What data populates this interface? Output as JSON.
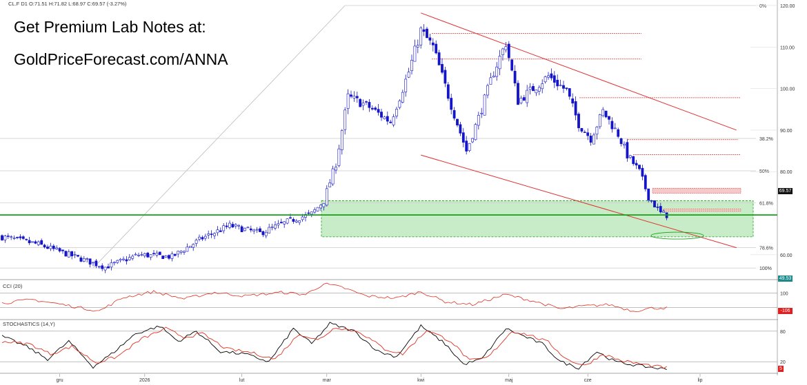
{
  "header": {
    "symbol": "CL.F",
    "timeframe": "D1",
    "ohlc_text": "O:71.51  H:71.82  L:68.97  C:69.57  (-3.27%)"
  },
  "promo": {
    "line1": "Get Premium Lab Notes at:",
    "line2": "GoldPriceForecast.com/ANNA"
  },
  "chart_data": [
    {
      "type": "candlestick",
      "title": "",
      "x_tick_labels": [
        "gru",
        "2026",
        "lut",
        "mar",
        "kwi",
        "maj",
        "cze",
        "lip"
      ],
      "y_tick_labels": [
        "120.00",
        "110.00",
        "100.00",
        "90.00",
        "80.00",
        "60.00"
      ],
      "ylim": [
        55,
        120
      ],
      "last_price": "69.57",
      "last_price_value": 69.57,
      "horizontal_support": 69.57,
      "fibonacci": {
        "start_value": 56.8,
        "end_value": 120.0,
        "levels": [
          {
            "label": "0%",
            "value": 120.0
          },
          {
            "label": "38.2%",
            "value": 88.0
          },
          {
            "label": "50%",
            "value": 80.2
          },
          {
            "label": "61.8%",
            "value": 72.5
          },
          {
            "label": "78.6%",
            "value": 61.7
          },
          {
            "label": "100%",
            "value": 56.8
          }
        ]
      },
      "green_zone": {
        "low": 64.3,
        "high": 73.0
      },
      "resistance_lines": [
        113.3,
        107.1,
        97.8,
        87.7,
        84.1
      ],
      "shaded_resistance": [
        {
          "low": 74.8,
          "high": 76.0
        },
        {
          "low": 70.5,
          "high": 71.0
        }
      ],
      "channel_upper": {
        "from": {
          "bar": 138,
          "value": 118.2
        },
        "to": {
          "bar": 242,
          "value": 90.0
        }
      },
      "channel_lower": {
        "from": {
          "bar": 138,
          "value": 84.0
        },
        "to": {
          "bar": 242,
          "value": 61.7
        }
      },
      "anchor_points": [
        {
          "bar": 0,
          "value": 64.3
        },
        {
          "bar": 12,
          "value": 62.5
        },
        {
          "bar": 30,
          "value": 58.0
        },
        {
          "bar": 34,
          "value": 57.0
        },
        {
          "bar": 45,
          "value": 60.0
        },
        {
          "bar": 56,
          "value": 59.5
        },
        {
          "bar": 66,
          "value": 64.0
        },
        {
          "bar": 75,
          "value": 67.0
        },
        {
          "bar": 85,
          "value": 65.2
        },
        {
          "bar": 96,
          "value": 68.5
        },
        {
          "bar": 102,
          "value": 69.8
        },
        {
          "bar": 106,
          "value": 73.0
        },
        {
          "bar": 110,
          "value": 82.0
        },
        {
          "bar": 114,
          "value": 98.0
        },
        {
          "bar": 120,
          "value": 96.0
        },
        {
          "bar": 128,
          "value": 92.0
        },
        {
          "bar": 134,
          "value": 104.0
        },
        {
          "bar": 138,
          "value": 114.0
        },
        {
          "bar": 142,
          "value": 110.0
        },
        {
          "bar": 148,
          "value": 96.0
        },
        {
          "bar": 153,
          "value": 85.0
        },
        {
          "bar": 157,
          "value": 93.0
        },
        {
          "bar": 162,
          "value": 104.0
        },
        {
          "bar": 166,
          "value": 111.0
        },
        {
          "bar": 170,
          "value": 97.0
        },
        {
          "bar": 175,
          "value": 100.0
        },
        {
          "bar": 180,
          "value": 103.0
        },
        {
          "bar": 186,
          "value": 99.5
        },
        {
          "bar": 190,
          "value": 91.5
        },
        {
          "bar": 194,
          "value": 88.0
        },
        {
          "bar": 198,
          "value": 94.5
        },
        {
          "bar": 203,
          "value": 89.0
        },
        {
          "bar": 206,
          "value": 84.0
        },
        {
          "bar": 210,
          "value": 80.0
        },
        {
          "bar": 213,
          "value": 74.0
        },
        {
          "bar": 217,
          "value": 70.0
        },
        {
          "bar": 219,
          "value": 69.57
        }
      ]
    },
    {
      "type": "line",
      "title": "CCI (20)",
      "y_tick_labels": [
        "100"
      ],
      "last_value_label": "-106",
      "last_value": -106,
      "ylim": [
        -250,
        250
      ],
      "anchor_points": [
        {
          "bar": 0,
          "value": -40
        },
        {
          "bar": 10,
          "value": 10
        },
        {
          "bar": 20,
          "value": -60
        },
        {
          "bar": 32,
          "value": -150
        },
        {
          "bar": 40,
          "value": 40
        },
        {
          "bar": 50,
          "value": 120
        },
        {
          "bar": 60,
          "value": 20
        },
        {
          "bar": 70,
          "value": 110
        },
        {
          "bar": 80,
          "value": 60
        },
        {
          "bar": 92,
          "value": 110
        },
        {
          "bar": 100,
          "value": 80
        },
        {
          "bar": 106,
          "value": 230
        },
        {
          "bar": 112,
          "value": 180
        },
        {
          "bar": 120,
          "value": 60
        },
        {
          "bar": 130,
          "value": 30
        },
        {
          "bar": 138,
          "value": 120
        },
        {
          "bar": 146,
          "value": -20
        },
        {
          "bar": 155,
          "value": -60
        },
        {
          "bar": 166,
          "value": 80
        },
        {
          "bar": 175,
          "value": -10
        },
        {
          "bar": 184,
          "value": -120
        },
        {
          "bar": 192,
          "value": -80
        },
        {
          "bar": 200,
          "value": -60
        },
        {
          "bar": 208,
          "value": -150
        },
        {
          "bar": 214,
          "value": -110
        },
        {
          "bar": 219,
          "value": -106
        }
      ]
    },
    {
      "type": "line",
      "title": "STOCHASTICS (14,Y)",
      "y_tick_labels": [
        "80",
        "20"
      ],
      "last_value_label": "5",
      "ylim": [
        0,
        100
      ],
      "series": [
        {
          "color": "#000000",
          "anchor_points": [
            {
              "bar": 0,
              "value": 70
            },
            {
              "bar": 8,
              "value": 50
            },
            {
              "bar": 15,
              "value": 25
            },
            {
              "bar": 22,
              "value": 60
            },
            {
              "bar": 30,
              "value": 10
            },
            {
              "bar": 36,
              "value": 35
            },
            {
              "bar": 44,
              "value": 75
            },
            {
              "bar": 52,
              "value": 90
            },
            {
              "bar": 58,
              "value": 60
            },
            {
              "bar": 64,
              "value": 80
            },
            {
              "bar": 72,
              "value": 40
            },
            {
              "bar": 80,
              "value": 35
            },
            {
              "bar": 88,
              "value": 20
            },
            {
              "bar": 96,
              "value": 85
            },
            {
              "bar": 102,
              "value": 55
            },
            {
              "bar": 108,
              "value": 95
            },
            {
              "bar": 116,
              "value": 80
            },
            {
              "bar": 124,
              "value": 40
            },
            {
              "bar": 130,
              "value": 30
            },
            {
              "bar": 138,
              "value": 90
            },
            {
              "bar": 146,
              "value": 55
            },
            {
              "bar": 152,
              "value": 15
            },
            {
              "bar": 158,
              "value": 25
            },
            {
              "bar": 166,
              "value": 85
            },
            {
              "bar": 172,
              "value": 70
            },
            {
              "bar": 178,
              "value": 55
            },
            {
              "bar": 184,
              "value": 20
            },
            {
              "bar": 190,
              "value": 8
            },
            {
              "bar": 196,
              "value": 40
            },
            {
              "bar": 202,
              "value": 20
            },
            {
              "bar": 210,
              "value": 12
            },
            {
              "bar": 219,
              "value": 5
            }
          ]
        },
        {
          "color": "#e03020",
          "anchor_points": [
            {
              "bar": 0,
              "value": 60
            },
            {
              "bar": 9,
              "value": 55
            },
            {
              "bar": 16,
              "value": 35
            },
            {
              "bar": 23,
              "value": 50
            },
            {
              "bar": 31,
              "value": 18
            },
            {
              "bar": 38,
              "value": 30
            },
            {
              "bar": 46,
              "value": 65
            },
            {
              "bar": 54,
              "value": 85
            },
            {
              "bar": 60,
              "value": 68
            },
            {
              "bar": 66,
              "value": 75
            },
            {
              "bar": 74,
              "value": 45
            },
            {
              "bar": 82,
              "value": 38
            },
            {
              "bar": 90,
              "value": 25
            },
            {
              "bar": 98,
              "value": 75
            },
            {
              "bar": 104,
              "value": 62
            },
            {
              "bar": 110,
              "value": 88
            },
            {
              "bar": 118,
              "value": 78
            },
            {
              "bar": 126,
              "value": 45
            },
            {
              "bar": 132,
              "value": 35
            },
            {
              "bar": 140,
              "value": 82
            },
            {
              "bar": 148,
              "value": 60
            },
            {
              "bar": 154,
              "value": 22
            },
            {
              "bar": 160,
              "value": 28
            },
            {
              "bar": 168,
              "value": 80
            },
            {
              "bar": 174,
              "value": 72
            },
            {
              "bar": 180,
              "value": 58
            },
            {
              "bar": 186,
              "value": 25
            },
            {
              "bar": 192,
              "value": 12
            },
            {
              "bar": 198,
              "value": 35
            },
            {
              "bar": 204,
              "value": 22
            },
            {
              "bar": 212,
              "value": 14
            },
            {
              "bar": 219,
              "value": 8
            }
          ]
        }
      ]
    }
  ],
  "extra_labels": {
    "cci_tag_value": "49.53"
  },
  "colors": {
    "up_body": "#ffffff",
    "down_body": "#1414c8",
    "wick": "#1414c8",
    "support_line": "#16a016",
    "zone_fill": "#c8ecc8",
    "resistance": "#e03030",
    "channel": "#e03030",
    "fib_line": "#a0a0a0"
  }
}
